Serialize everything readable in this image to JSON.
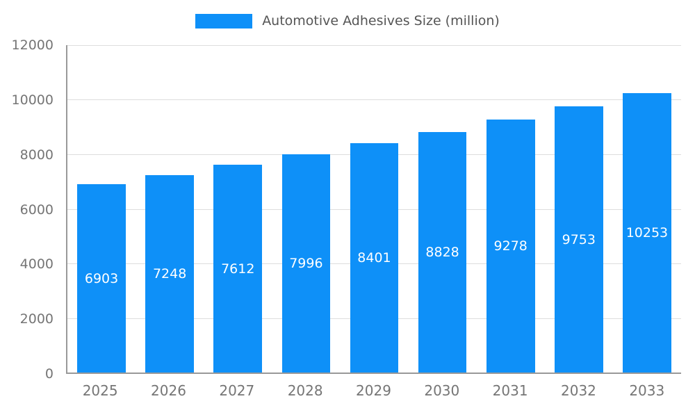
{
  "chart_data": {
    "type": "bar",
    "title": "Automotive Adhesives Size (million)",
    "legend_entries": [
      "Automotive Adhesives Size (million)"
    ],
    "legend_position": "top",
    "categories": [
      "2025",
      "2026",
      "2027",
      "2028",
      "2029",
      "2030",
      "2031",
      "2032",
      "2033"
    ],
    "values": [
      6903,
      7248,
      7612,
      7996,
      8401,
      8828,
      9278,
      9753,
      10253
    ],
    "xlabel": "",
    "ylabel": "",
    "ylim": [
      0,
      12000
    ],
    "yticks": [
      0,
      2000,
      4000,
      6000,
      8000,
      10000,
      12000
    ],
    "grid": true,
    "bar_labels_shown": true,
    "colors": {
      "bar": "#0E90F8",
      "bar_label": "#FFFFFF",
      "axis_text": "#757575",
      "legend_text": "#555555",
      "gridline": "#DDDDDD",
      "axis_line": "#999999",
      "background": "#FFFFFF"
    }
  }
}
